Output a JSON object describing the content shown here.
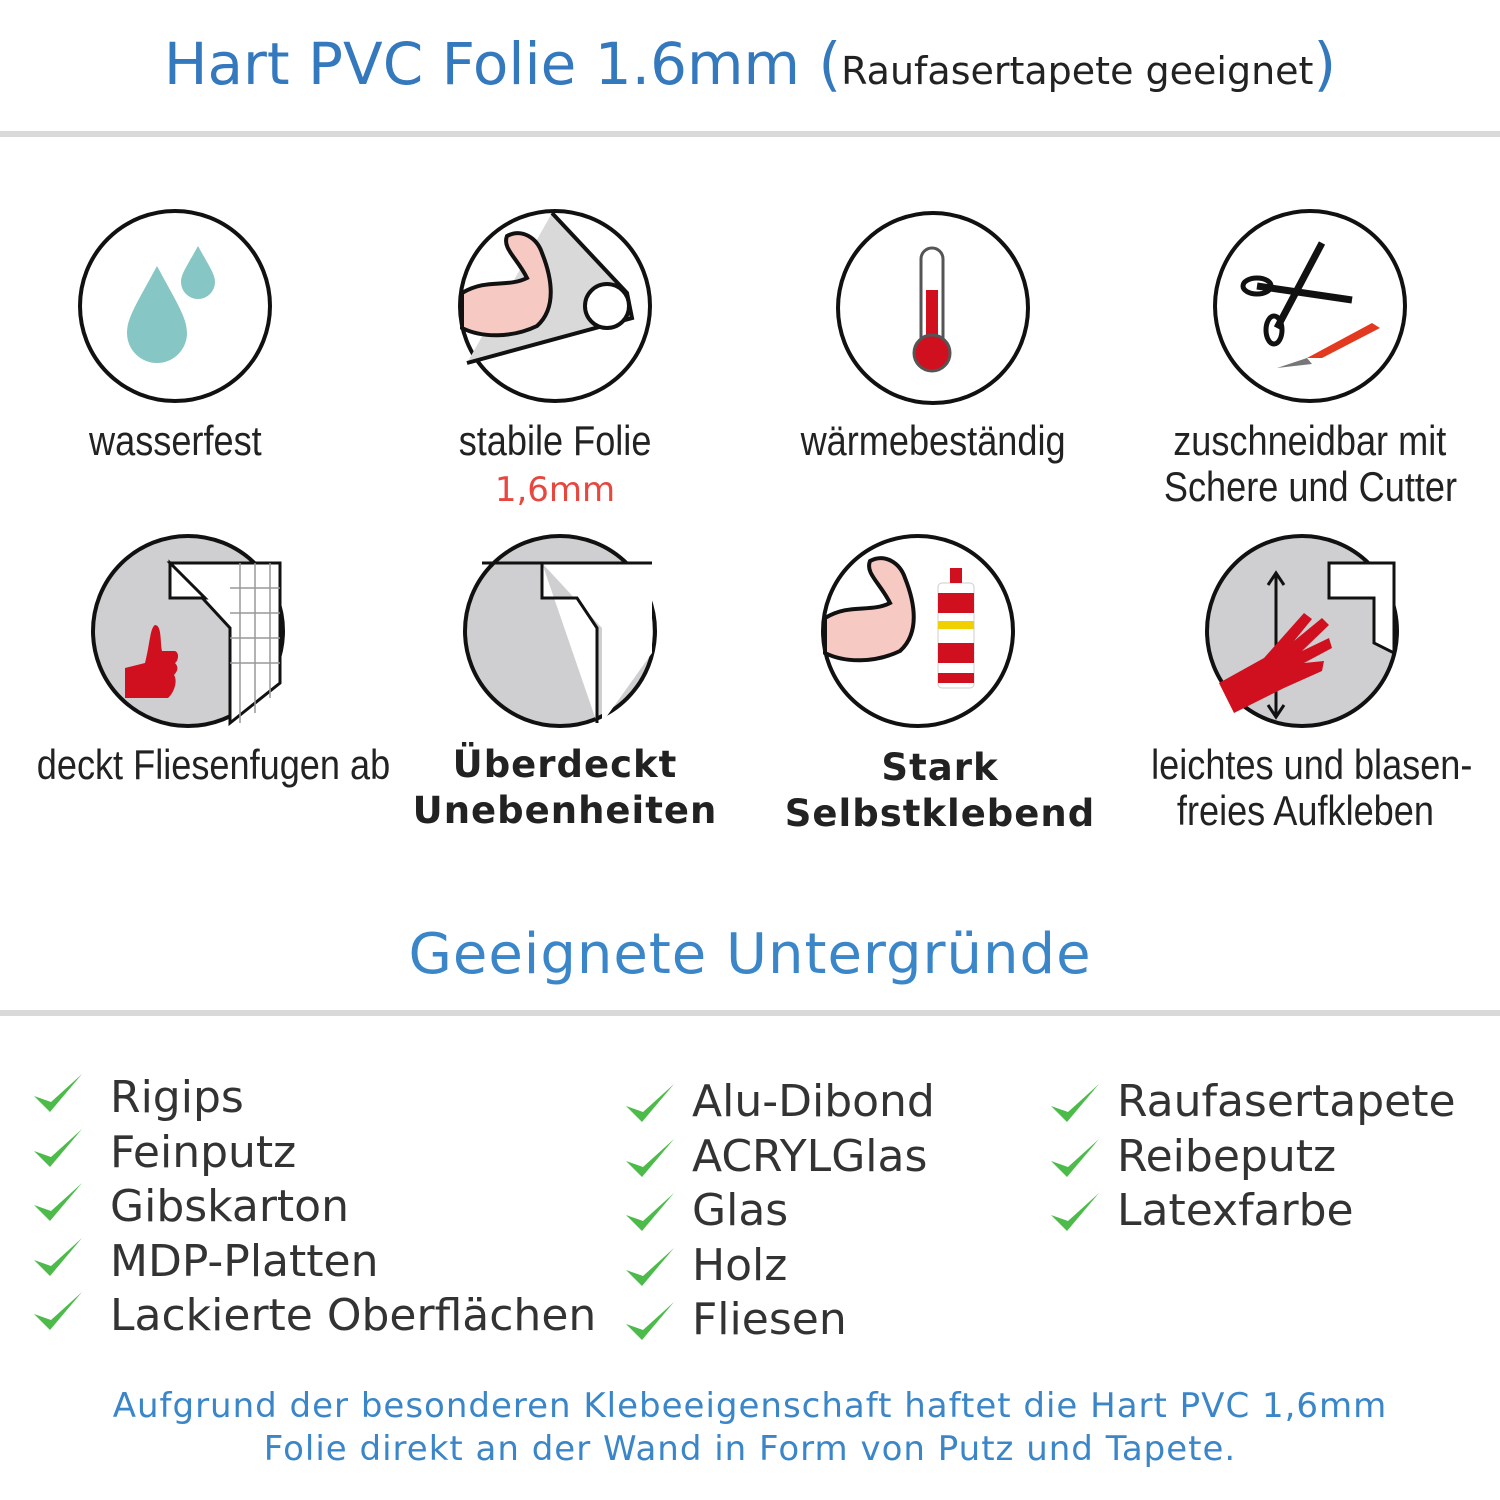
{
  "header": {
    "title": "Hart PVC Folie 1.6mm",
    "paren_open": "(",
    "subtitle": "Raufasertapete geeignet",
    "paren_close": ")"
  },
  "features": [
    {
      "icon": "water-drops-icon",
      "label": "wasserfest"
    },
    {
      "icon": "flexed-arm-roll-icon",
      "label": "stabile Folie",
      "sublabel": "1,6mm"
    },
    {
      "icon": "thermometer-icon",
      "label": "wärmebeständig"
    },
    {
      "icon": "scissors-cutter-icon",
      "label_line1": "zuschneidbar mit",
      "label_line2": "Schere und Cutter"
    },
    {
      "icon": "thumbs-up-tiles-icon",
      "label": "deckt Fliesenfugen ab"
    },
    {
      "icon": "peeling-sheet-icon",
      "label_line1": "Überdeckt",
      "label_line2": "Unebenheiten"
    },
    {
      "icon": "arm-glue-icon",
      "label_line1": "Stark",
      "label_line2": "Selbstklebend"
    },
    {
      "icon": "hand-smoothing-icon",
      "label_line1": "leichtes und blasen-",
      "label_line2": "freies Aufkleben"
    }
  ],
  "surfaces": {
    "title": "Geeignete Untergründe",
    "columns": [
      [
        "Rigips",
        "Feinputz",
        "Gibskarton",
        "MDP-Platten",
        "Lackierte Oberflächen"
      ],
      [
        "Alu-Dibond",
        "ACRYLGlas",
        "Glas",
        "Holz",
        "Fliesen"
      ],
      [
        "Raufasertapete",
        "Reibeputz",
        "Latexfarbe"
      ]
    ]
  },
  "footer": {
    "line1": "Aufgrund der besonderen Klebeeigenschaft haftet die Hart PVC 1,6mm",
    "line2": "Folie direkt an der Wand in Form von Putz und Tapete."
  },
  "colors": {
    "title_blue": "#3478bd",
    "check_green": "#4cbb4a",
    "accent_red": "#e8473f",
    "divider": "#d9d9d9"
  }
}
